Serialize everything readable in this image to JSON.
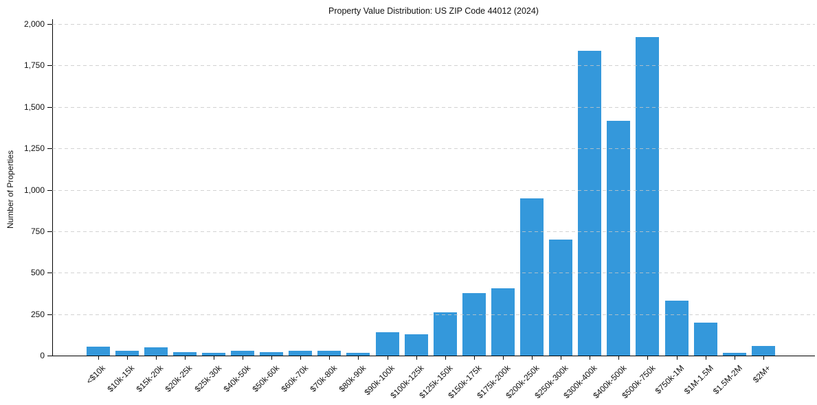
{
  "figure": {
    "background": "#ffffff",
    "text_color": "#111111"
  },
  "chart_data": {
    "type": "bar",
    "title": "Property Value Distribution: US ZIP Code 44012 (2024)",
    "xlabel": "",
    "ylabel": "Number of Properties",
    "categories": [
      "<$10k",
      "$10k-15k",
      "$15k-20k",
      "$20k-25k",
      "$25k-30k",
      "$40k-50k",
      "$50k-60k",
      "$60k-70k",
      "$70k-80k",
      "$80k-90k",
      "$90k-100k",
      "$100k-125k",
      "$125k-150k",
      "$150k-175k",
      "$175k-200k",
      "$200k-250k",
      "$250k-300k",
      "$300k-400k",
      "$400k-500k",
      "$500k-750k",
      "$750k-1M",
      "$1M-1.5M",
      "$1.5M-2M",
      "$2M+"
    ],
    "values": [
      55,
      30,
      48,
      20,
      15,
      30,
      20,
      28,
      28,
      15,
      140,
      130,
      260,
      378,
      405,
      950,
      700,
      1840,
      1415,
      1920,
      330,
      200,
      15,
      60
    ],
    "ylim": [
      0,
      2000
    ],
    "yticks": [
      0,
      250,
      500,
      750,
      1000,
      1250,
      1500,
      1750,
      2000
    ],
    "ytick_labels": [
      "0",
      "250",
      "500",
      "750",
      "1,000",
      "1,250",
      "1,500",
      "1,750",
      "2,000"
    ],
    "bar_color": "#3498db",
    "grid": {
      "axis": "y",
      "style": "dashed",
      "color": "#c7c7c7",
      "on": true
    },
    "legend": {
      "visible": false
    }
  }
}
